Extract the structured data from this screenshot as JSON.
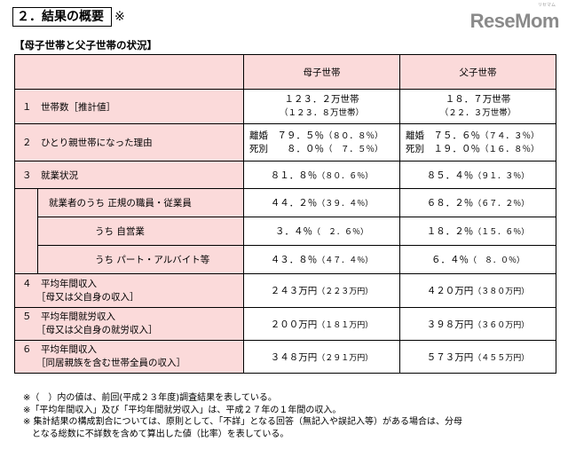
{
  "heading": {
    "title": "２．結果の概要",
    "mark": "※"
  },
  "logo": {
    "text": "ReseMom",
    "sub": "リセマム"
  },
  "subheading": "【母子世帯と父子世帯の状況】",
  "table": {
    "columns": [
      "母子世帯",
      "父子世帯"
    ],
    "rows": [
      {
        "label": "１　世帯数［推計値］",
        "mother": {
          "main": "１２３．２万世帯",
          "sub": "（１２３．８万世帯）"
        },
        "father": {
          "main": "１８．７万世帯",
          "sub": "（２２．３万世帯）"
        }
      },
      {
        "label": "２　ひとり親世帯になった理由",
        "mother": {
          "line1": "離婚　７９．５％",
          "line1p": "（８０．８％）",
          "line2": "死別　　８．０％",
          "line2p": "（　７．５％）"
        },
        "father": {
          "line1": "離婚　７５．６％",
          "line1p": "（７４．３％）",
          "line2": "死別　１９．０％",
          "line2p": "（１６．８％）"
        }
      },
      {
        "label": "３　就業状況",
        "mother": {
          "main": "８１．８％",
          "paren": "（８０．６％）"
        },
        "father": {
          "main": "８５．４％",
          "paren": "（９１．３％）"
        }
      },
      {
        "label": "就業者のうち 正規の職員・従業員",
        "mother": {
          "main": "４４．２％",
          "paren": "（３９．４％）"
        },
        "father": {
          "main": "６８．２％",
          "paren": "（６７．２％）"
        }
      },
      {
        "label": "うち 自営業",
        "mother": {
          "main": "３．４％",
          "paren": "（　２．６％）"
        },
        "father": {
          "main": "１８．２％",
          "paren": "（１５．６％）"
        }
      },
      {
        "label": "うち パート・アルバイト等",
        "mother": {
          "main": "４３．８％",
          "paren": "（４７．４％）"
        },
        "father": {
          "main": "６．４％",
          "paren": "（　８．０％）"
        }
      },
      {
        "label": "４　平均年間収入",
        "label2": "［母又は父自身の収入］",
        "mother": {
          "main": "２４３万円",
          "paren": "（２２３万円）"
        },
        "father": {
          "main": "４２０万円",
          "paren": "（３８０万円）"
        }
      },
      {
        "label": "５　平均年間就労収入",
        "label2": "［母又は父自身の就労収入］",
        "mother": {
          "main": "２００万円",
          "paren": "（１８１万円）"
        },
        "father": {
          "main": "３９８万円",
          "paren": "（３６０万円）"
        }
      },
      {
        "label": "６　平均年間収入",
        "label2": "［同居親族を含む世帯全員の収入］",
        "mother": {
          "main": "３４８万円",
          "paren": "（２９１万円）"
        },
        "father": {
          "main": "５７３万円",
          "paren": "（４５５万円）"
        }
      }
    ]
  },
  "notes": [
    "※（　）内の値は、前回(平成２３年度)調査結果を表している。",
    "※「平均年間収入」及び「平均年間就労収入」は、平成２７年の１年間の収入。",
    "※ 集計結果の構成割合については、原則として、「不詳」となる回答（無記入や誤記入等）がある場合は、分母",
    "　となる総数に不詳数を含めて算出した値（比率）を表している。"
  ]
}
